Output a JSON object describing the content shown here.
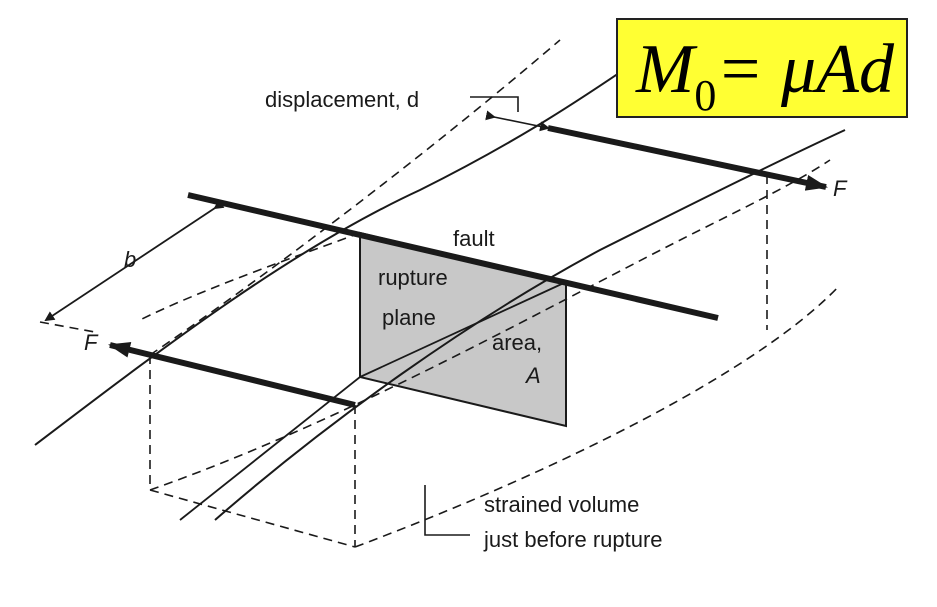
{
  "equation": {
    "lhs": "M",
    "subscript": "0",
    "rhs": "= μAd",
    "background": "#ffff33"
  },
  "labels": {
    "displacement": "displacement, d",
    "fault": "fault",
    "rupture_plane": [
      "rupture",
      "plane"
    ],
    "area": [
      "area,",
      "A"
    ],
    "b": "b",
    "force_left": "F",
    "force_right": "F",
    "strained_volume": [
      "strained volume",
      "just before rupture"
    ]
  },
  "colors": {
    "plane_fill": "#c8c8c8",
    "ink": "#1a1a1a"
  }
}
